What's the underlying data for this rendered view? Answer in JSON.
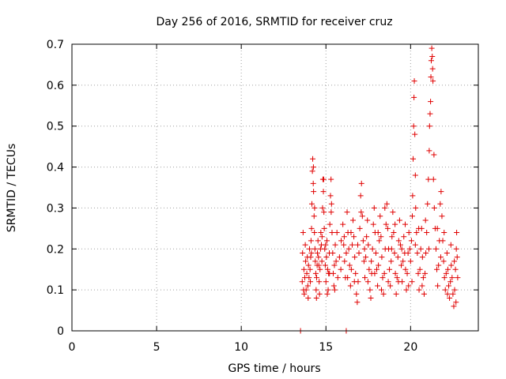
{
  "chart_data": {
    "type": "scatter",
    "title": "Day 256 of 2016, SRMTID for receiver cruz",
    "xlabel": "GPS time / hours",
    "ylabel": "SRMTID / TECUs",
    "xlim": [
      0,
      24
    ],
    "ylim": [
      0,
      0.7
    ],
    "xticks": [
      0,
      5,
      10,
      15,
      20
    ],
    "yticks": [
      0,
      0.1,
      0.2,
      0.3,
      0.4,
      0.5,
      0.6,
      0.7
    ],
    "xtick_labels": [
      "0",
      "5",
      "10",
      "15",
      "20"
    ],
    "ytick_labels": [
      "0",
      "0.1",
      "0.2",
      "0.3",
      "0.4",
      "0.5",
      "0.6",
      "0.7"
    ],
    "grid": true,
    "marker": "+",
    "color": "#e00000",
    "series": [
      {
        "name": "SRMTID",
        "points": [
          [
            13.5,
            0.0
          ],
          [
            16.2,
            0.0
          ],
          [
            13.6,
            0.12
          ],
          [
            13.62,
            0.19
          ],
          [
            13.65,
            0.24
          ],
          [
            13.7,
            0.15
          ],
          [
            13.72,
            0.09
          ],
          [
            13.75,
            0.13
          ],
          [
            13.8,
            0.17
          ],
          [
            13.83,
            0.1
          ],
          [
            13.87,
            0.14
          ],
          [
            13.9,
            0.18
          ],
          [
            13.93,
            0.11
          ],
          [
            13.97,
            0.16
          ],
          [
            14.0,
            0.13
          ],
          [
            14.03,
            0.2
          ],
          [
            14.06,
            0.15
          ],
          [
            14.08,
            0.12
          ],
          [
            14.1,
            0.18
          ],
          [
            14.12,
            0.22
          ],
          [
            14.15,
            0.25
          ],
          [
            14.17,
            0.31
          ],
          [
            14.2,
            0.39
          ],
          [
            14.22,
            0.42
          ],
          [
            14.25,
            0.36
          ],
          [
            14.27,
            0.34
          ],
          [
            14.3,
            0.28
          ],
          [
            14.32,
            0.24
          ],
          [
            14.35,
            0.2
          ],
          [
            14.37,
            0.17
          ],
          [
            14.4,
            0.14
          ],
          [
            14.42,
            0.1
          ],
          [
            14.45,
            0.13
          ],
          [
            14.48,
            0.16
          ],
          [
            14.5,
            0.19
          ],
          [
            14.53,
            0.22
          ],
          [
            14.56,
            0.18
          ],
          [
            14.6,
            0.12
          ],
          [
            14.62,
            0.09
          ],
          [
            14.65,
            0.15
          ],
          [
            14.68,
            0.2
          ],
          [
            14.7,
            0.24
          ],
          [
            14.73,
            0.21
          ],
          [
            14.76,
            0.17
          ],
          [
            14.8,
            0.3
          ],
          [
            14.82,
            0.37
          ],
          [
            14.85,
            0.34
          ],
          [
            14.88,
            0.29
          ],
          [
            14.9,
            0.25
          ],
          [
            14.93,
            0.2
          ],
          [
            14.96,
            0.16
          ],
          [
            15.0,
            0.12
          ],
          [
            15.03,
            0.18
          ],
          [
            15.06,
            0.22
          ],
          [
            15.1,
            0.15
          ],
          [
            15.13,
            0.1
          ],
          [
            15.16,
            0.14
          ],
          [
            15.2,
            0.19
          ],
          [
            15.23,
            0.26
          ],
          [
            15.27,
            0.33
          ],
          [
            15.3,
            0.37
          ],
          [
            15.33,
            0.31
          ],
          [
            15.36,
            0.24
          ],
          [
            15.4,
            0.19
          ],
          [
            15.43,
            0.14
          ],
          [
            15.47,
            0.11
          ],
          [
            15.5,
            0.16
          ],
          [
            15.55,
            0.21
          ],
          [
            15.6,
            0.17
          ],
          [
            15.7,
            0.13
          ],
          [
            15.8,
            0.18
          ],
          [
            15.9,
            0.22
          ],
          [
            16.0,
            0.26
          ],
          [
            16.05,
            0.21
          ],
          [
            16.1,
            0.17
          ],
          [
            16.15,
            0.13
          ],
          [
            16.2,
            0.19
          ],
          [
            16.25,
            0.29
          ],
          [
            16.3,
            0.24
          ],
          [
            16.35,
            0.2
          ],
          [
            16.4,
            0.16
          ],
          [
            16.45,
            0.11
          ],
          [
            16.5,
            0.15
          ],
          [
            16.55,
            0.21
          ],
          [
            16.6,
            0.27
          ],
          [
            16.65,
            0.23
          ],
          [
            16.7,
            0.18
          ],
          [
            16.75,
            0.14
          ],
          [
            16.8,
            0.09
          ],
          [
            16.85,
            0.07
          ],
          [
            16.9,
            0.12
          ],
          [
            16.95,
            0.19
          ],
          [
            17.0,
            0.25
          ],
          [
            17.05,
            0.33
          ],
          [
            17.1,
            0.36
          ],
          [
            17.15,
            0.28
          ],
          [
            17.2,
            0.22
          ],
          [
            17.25,
            0.17
          ],
          [
            17.3,
            0.13
          ],
          [
            17.35,
            0.18
          ],
          [
            17.4,
            0.23
          ],
          [
            17.45,
            0.27
          ],
          [
            17.5,
            0.21
          ],
          [
            17.55,
            0.15
          ],
          [
            17.6,
            0.1
          ],
          [
            17.65,
            0.08
          ],
          [
            17.7,
            0.14
          ],
          [
            17.75,
            0.2
          ],
          [
            17.8,
            0.26
          ],
          [
            17.85,
            0.3
          ],
          [
            17.9,
            0.24
          ],
          [
            17.95,
            0.19
          ],
          [
            18.0,
            0.15
          ],
          [
            18.05,
            0.11
          ],
          [
            18.1,
            0.16
          ],
          [
            18.15,
            0.22
          ],
          [
            18.2,
            0.28
          ],
          [
            18.25,
            0.23
          ],
          [
            18.3,
            0.18
          ],
          [
            18.35,
            0.13
          ],
          [
            18.4,
            0.09
          ],
          [
            18.45,
            0.14
          ],
          [
            18.5,
            0.2
          ],
          [
            18.55,
            0.26
          ],
          [
            18.6,
            0.31
          ],
          [
            18.65,
            0.25
          ],
          [
            18.7,
            0.2
          ],
          [
            18.75,
            0.15
          ],
          [
            18.8,
            0.11
          ],
          [
            18.85,
            0.17
          ],
          [
            18.9,
            0.23
          ],
          [
            18.95,
            0.29
          ],
          [
            19.0,
            0.24
          ],
          [
            19.05,
            0.19
          ],
          [
            19.1,
            0.14
          ],
          [
            19.15,
            0.09
          ],
          [
            19.2,
            0.13
          ],
          [
            19.25,
            0.18
          ],
          [
            19.3,
            0.22
          ],
          [
            19.35,
            0.27
          ],
          [
            19.4,
            0.21
          ],
          [
            19.45,
            0.16
          ],
          [
            19.5,
            0.12
          ],
          [
            19.55,
            0.17
          ],
          [
            19.6,
            0.23
          ],
          [
            19.65,
            0.19
          ],
          [
            19.7,
            0.15
          ],
          [
            19.75,
            0.1
          ],
          [
            19.8,
            0.14
          ],
          [
            19.85,
            0.19
          ],
          [
            19.9,
            0.24
          ],
          [
            19.95,
            0.2
          ],
          [
            20.0,
            0.17
          ],
          [
            20.05,
            0.22
          ],
          [
            20.1,
            0.28
          ],
          [
            20.12,
            0.33
          ],
          [
            20.15,
            0.42
          ],
          [
            20.18,
            0.5
          ],
          [
            20.2,
            0.57
          ],
          [
            20.22,
            0.61
          ],
          [
            20.25,
            0.48
          ],
          [
            20.28,
            0.38
          ],
          [
            20.3,
            0.3
          ],
          [
            20.35,
            0.24
          ],
          [
            20.4,
            0.19
          ],
          [
            20.45,
            0.14
          ],
          [
            20.5,
            0.1
          ],
          [
            20.55,
            0.15
          ],
          [
            20.6,
            0.2
          ],
          [
            20.65,
            0.25
          ],
          [
            20.7,
            0.18
          ],
          [
            20.75,
            0.13
          ],
          [
            20.8,
            0.09
          ],
          [
            20.85,
            0.14
          ],
          [
            20.9,
            0.19
          ],
          [
            20.95,
            0.24
          ],
          [
            21.0,
            0.31
          ],
          [
            21.05,
            0.37
          ],
          [
            21.1,
            0.44
          ],
          [
            21.12,
            0.5
          ],
          [
            21.15,
            0.53
          ],
          [
            21.18,
            0.56
          ],
          [
            21.2,
            0.62
          ],
          [
            21.22,
            0.66
          ],
          [
            21.25,
            0.69
          ],
          [
            21.28,
            0.67
          ],
          [
            21.3,
            0.64
          ],
          [
            21.32,
            0.61
          ],
          [
            21.35,
            0.37
          ],
          [
            21.4,
            0.3
          ],
          [
            21.45,
            0.25
          ],
          [
            21.5,
            0.2
          ],
          [
            21.55,
            0.15
          ],
          [
            21.6,
            0.11
          ],
          [
            21.65,
            0.16
          ],
          [
            21.7,
            0.22
          ],
          [
            21.75,
            0.31
          ],
          [
            21.8,
            0.34
          ],
          [
            21.85,
            0.28
          ],
          [
            21.9,
            0.22
          ],
          [
            21.95,
            0.17
          ],
          [
            22.0,
            0.13
          ],
          [
            22.05,
            0.1
          ],
          [
            22.1,
            0.14
          ],
          [
            22.15,
            0.19
          ],
          [
            22.2,
            0.15
          ],
          [
            22.25,
            0.11
          ],
          [
            22.3,
            0.08
          ],
          [
            22.35,
            0.12
          ],
          [
            22.4,
            0.16
          ],
          [
            22.45,
            0.13
          ],
          [
            22.5,
            0.09
          ],
          [
            22.55,
            0.06
          ],
          [
            22.6,
            0.1
          ],
          [
            22.65,
            0.15
          ],
          [
            22.7,
            0.2
          ],
          [
            22.72,
            0.24
          ],
          [
            22.75,
            0.18
          ],
          [
            22.78,
            0.13
          ],
          [
            13.68,
            0.1
          ],
          [
            13.78,
            0.21
          ],
          [
            13.95,
            0.08
          ],
          [
            14.14,
            0.19
          ],
          [
            14.26,
            0.4
          ],
          [
            14.33,
            0.3
          ],
          [
            14.44,
            0.08
          ],
          [
            14.58,
            0.16
          ],
          [
            14.77,
            0.23
          ],
          [
            14.87,
            0.37
          ],
          [
            14.98,
            0.21
          ],
          [
            15.08,
            0.09
          ],
          [
            15.21,
            0.14
          ],
          [
            15.31,
            0.29
          ],
          [
            15.52,
            0.1
          ],
          [
            15.65,
            0.24
          ],
          [
            15.88,
            0.15
          ],
          [
            16.08,
            0.23
          ],
          [
            16.28,
            0.13
          ],
          [
            16.48,
            0.24
          ],
          [
            16.68,
            0.12
          ],
          [
            16.88,
            0.21
          ],
          [
            17.08,
            0.29
          ],
          [
            17.28,
            0.2
          ],
          [
            17.48,
            0.12
          ],
          [
            17.68,
            0.17
          ],
          [
            17.88,
            0.14
          ],
          [
            18.08,
            0.24
          ],
          [
            18.28,
            0.1
          ],
          [
            18.48,
            0.3
          ],
          [
            18.68,
            0.12
          ],
          [
            18.88,
            0.2
          ],
          [
            19.08,
            0.26
          ],
          [
            19.28,
            0.12
          ],
          [
            19.48,
            0.2
          ],
          [
            19.68,
            0.26
          ],
          [
            19.88,
            0.11
          ],
          [
            20.08,
            0.12
          ],
          [
            20.28,
            0.21
          ],
          [
            20.48,
            0.25
          ],
          [
            20.68,
            0.11
          ],
          [
            20.88,
            0.27
          ],
          [
            21.08,
            0.2
          ],
          [
            21.38,
            0.43
          ],
          [
            21.58,
            0.25
          ],
          [
            21.78,
            0.18
          ],
          [
            21.98,
            0.24
          ],
          [
            22.18,
            0.09
          ],
          [
            22.38,
            0.21
          ],
          [
            22.58,
            0.17
          ],
          [
            22.68,
            0.07
          ]
        ]
      }
    ]
  }
}
